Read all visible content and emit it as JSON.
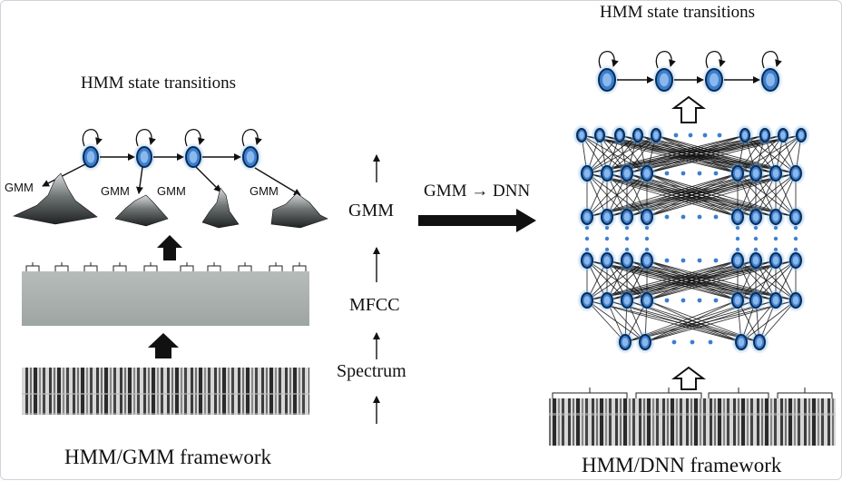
{
  "left_panel": {
    "title": "HMM state transitions",
    "gmm_labels": [
      "GMM",
      "GMM",
      "GMM",
      "GMM"
    ],
    "framework_label": "HMM/GMM framework"
  },
  "pipeline": {
    "stages": [
      "Spectrum",
      "MFCC",
      "GMM"
    ],
    "conversion_label": "GMM → DNN"
  },
  "right_panel": {
    "title": "HMM state transitions",
    "framework_label": "HMM/DNN framework"
  },
  "colors": {
    "node_glow": "#7fb6ea",
    "node_fill": "#3a7fd0",
    "node_outline": "#0b2c55",
    "ink": "#111111",
    "spectrogram_dark": "#2a2a2a",
    "mfcc_gray": "#a7aeab"
  }
}
